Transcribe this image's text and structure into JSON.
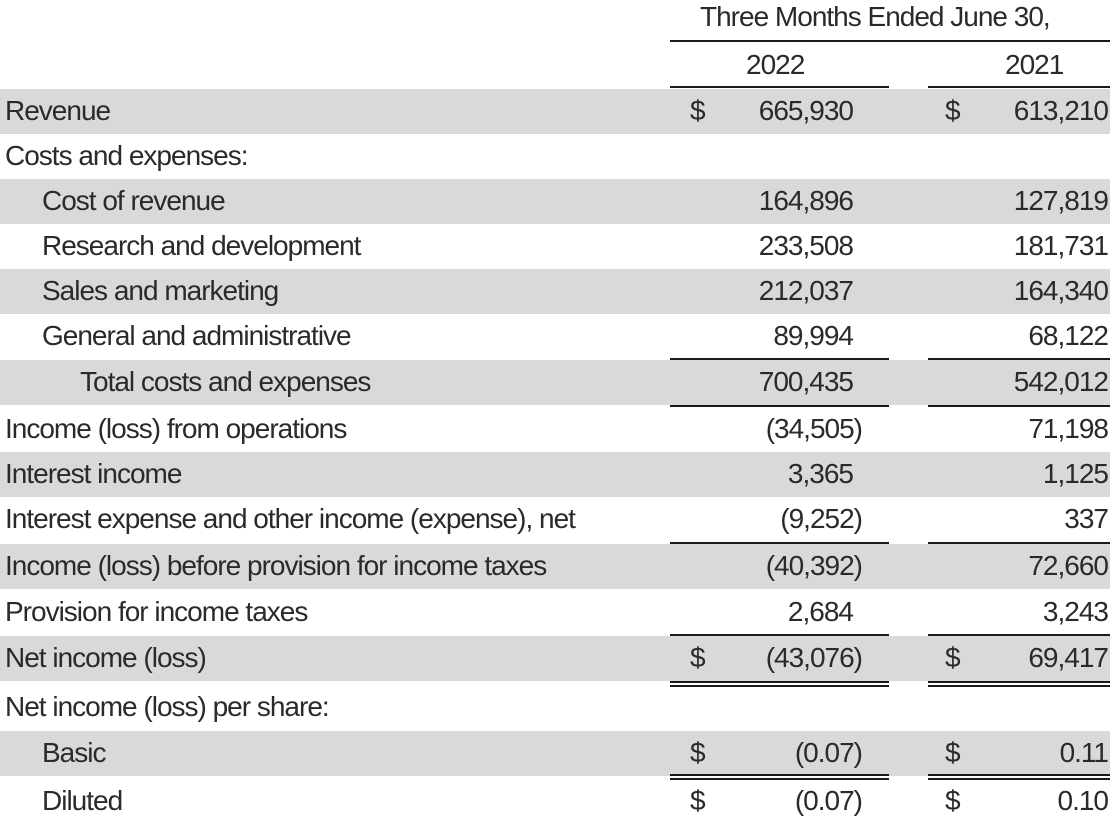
{
  "header": {
    "period": "Three Months Ended June 30,",
    "col_2022": "2022",
    "col_2021": "2021"
  },
  "currency_symbol": "$",
  "band_color": "#d9d9d9",
  "rows": [
    {
      "label": "Revenue",
      "v2022": "665,930",
      "v2021": "613,210",
      "shaded": true,
      "indent": 0,
      "dollar": true
    },
    {
      "label": "Costs and expenses:",
      "v2022": "",
      "v2021": "",
      "shaded": false,
      "indent": 0,
      "dollar": false
    },
    {
      "label": "Cost of revenue",
      "v2022": "164,896",
      "v2021": "127,819",
      "shaded": true,
      "indent": 1,
      "dollar": false
    },
    {
      "label": "Research and development",
      "v2022": "233,508",
      "v2021": "181,731",
      "shaded": false,
      "indent": 1,
      "dollar": false
    },
    {
      "label": "Sales and marketing",
      "v2022": "212,037",
      "v2021": "164,340",
      "shaded": true,
      "indent": 1,
      "dollar": false
    },
    {
      "label": "General and administrative",
      "v2022": "89,994",
      "v2021": "68,122",
      "shaded": false,
      "indent": 1,
      "dollar": false
    },
    {
      "label": "Total costs and expenses",
      "v2022": "700,435",
      "v2021": "542,012",
      "shaded": true,
      "indent": 2,
      "dollar": false
    },
    {
      "label": "Income (loss) from operations",
      "v2022": "(34,505)",
      "v2021": "71,198",
      "shaded": false,
      "indent": 0,
      "dollar": false
    },
    {
      "label": "Interest income",
      "v2022": "3,365",
      "v2021": "1,125",
      "shaded": true,
      "indent": 0,
      "dollar": false
    },
    {
      "label": "Interest expense and other income (expense), net",
      "v2022": "(9,252)",
      "v2021": "337",
      "shaded": false,
      "indent": 0,
      "dollar": false
    },
    {
      "label": "Income (loss) before provision for income taxes",
      "v2022": "(40,392)",
      "v2021": "72,660",
      "shaded": true,
      "indent": 0,
      "dollar": false
    },
    {
      "label": "Provision for income taxes",
      "v2022": "2,684",
      "v2021": "3,243",
      "shaded": false,
      "indent": 0,
      "dollar": false
    },
    {
      "label": "Net income (loss)",
      "v2022": "(43,076)",
      "v2021": "69,417",
      "shaded": true,
      "indent": 0,
      "dollar": true
    },
    {
      "label": "Net income (loss) per share:",
      "v2022": "",
      "v2021": "",
      "shaded": false,
      "indent": 0,
      "dollar": false
    },
    {
      "label": "Basic",
      "v2022": "(0.07)",
      "v2021": "0.11",
      "shaded": true,
      "indent": 1,
      "dollar": true
    },
    {
      "label": "Diluted",
      "v2022": "(0.07)",
      "v2021": "0.10",
      "shaded": false,
      "indent": 1,
      "dollar": true
    }
  ]
}
